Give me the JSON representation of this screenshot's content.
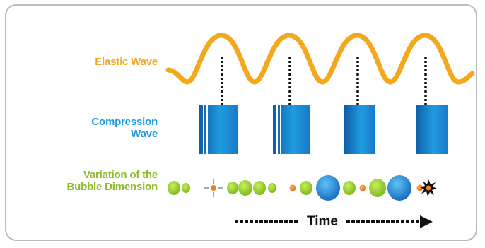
{
  "labels": {
    "elastic_wave": "Elastic Wave",
    "compression_wave_line1": "Compression",
    "compression_wave_line2": "Wave",
    "bubble_line1": "Variation of the",
    "bubble_line2": "Bubble Dimension",
    "time": "Time"
  },
  "colors": {
    "elastic_wave": "#f4a81d",
    "compression_wave": "#1f9cdf",
    "compression_wave_dark": "#0f5da8",
    "bubble_label": "#8dbb2b",
    "bubble_green": "#9fd230",
    "bubble_orange": "#f3801f",
    "bubble_blue": "#2a93dc",
    "collapse": "#111111",
    "frame_border": "#b9bcbf"
  },
  "bubble_sequence": [
    "green-large",
    "green-small",
    "collapse-orange",
    "green-small",
    "green-medium",
    "green-large",
    "green-small",
    "orange",
    "green-medium",
    "blue-large",
    "green-small",
    "orange",
    "green-medium",
    "blue-large",
    "orange",
    "collapse-black"
  ],
  "icons": {
    "collapse": "burst-icon",
    "time_arrow": "arrow-right-icon"
  }
}
